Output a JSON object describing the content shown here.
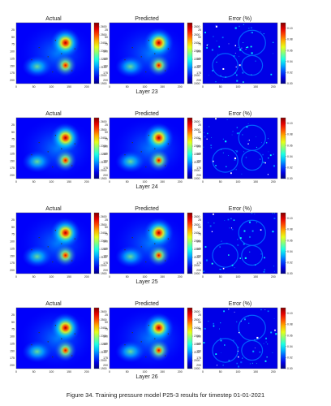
{
  "caption": "Figure 34. Training pressure model P25-3 results for timestep 01-01-2021",
  "chart_data": {
    "type": "heatmap",
    "columns": [
      "Actual",
      "Predicted",
      "Error (%)"
    ],
    "layers": [
      "Layer 23",
      "Layer 24",
      "Layer 25",
      "Layer 26"
    ],
    "x_ticks": [
      0,
      50,
      100,
      150,
      200
    ],
    "y_ticks": [
      25,
      50,
      75,
      100,
      125,
      150,
      175,
      200
    ],
    "pressure_colorbar_ticks": [
      1900,
      2000,
      2100,
      2200,
      2300,
      2400,
      2500,
      2600
    ],
    "pressure_range": [
      1900,
      2650
    ],
    "error_colorbar_ticks": [
      0.0,
      0.02,
      0.04,
      0.06,
      0.08,
      0.1
    ],
    "error_range": [
      0,
      0.11
    ],
    "colors": {
      "low": "#00007f",
      "mid": "#7fff7f",
      "high": "#7f0000"
    }
  }
}
